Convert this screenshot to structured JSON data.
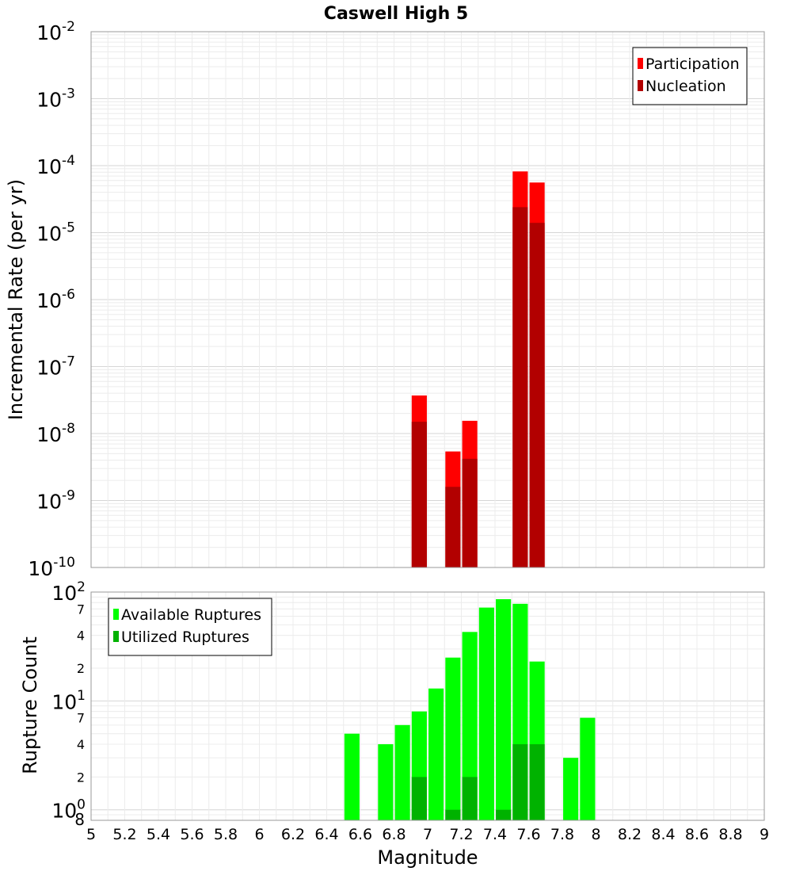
{
  "chart_data": [
    {
      "type": "bar",
      "title": "Caswell High 5",
      "xlabel": "",
      "ylabel": "Incremental Rate (per yr)",
      "yscale": "log",
      "xlim": [
        5,
        9
      ],
      "ylim": [
        1e-10,
        0.01
      ],
      "y_major_ticks": [
        {
          "base": "10",
          "exp": "-10"
        },
        {
          "base": "10",
          "exp": "-9"
        },
        {
          "base": "10",
          "exp": "-8"
        },
        {
          "base": "10",
          "exp": "-7"
        },
        {
          "base": "10",
          "exp": "-6"
        },
        {
          "base": "10",
          "exp": "-5"
        },
        {
          "base": "10",
          "exp": "-4"
        },
        {
          "base": "10",
          "exp": "-3"
        },
        {
          "base": "10",
          "exp": "-2"
        }
      ],
      "legend_position": "top-right",
      "bar_width": 0.09,
      "series": [
        {
          "name": "Participation",
          "color": "#ff0000",
          "points": [
            {
              "x": 6.95,
              "y": 3.7e-08
            },
            {
              "x": 7.15,
              "y": 5.4e-09
            },
            {
              "x": 7.25,
              "y": 1.55e-08
            },
            {
              "x": 7.55,
              "y": 8.2e-05
            },
            {
              "x": 7.65,
              "y": 5.6e-05
            }
          ]
        },
        {
          "name": "Nucleation",
          "color": "#b20000",
          "points": [
            {
              "x": 6.95,
              "y": 1.5e-08
            },
            {
              "x": 7.15,
              "y": 1.6e-09
            },
            {
              "x": 7.25,
              "y": 4.2e-09
            },
            {
              "x": 7.55,
              "y": 2.4e-05
            },
            {
              "x": 7.65,
              "y": 1.4e-05
            }
          ]
        }
      ]
    },
    {
      "type": "bar",
      "title": "",
      "xlabel": "Magnitude",
      "ylabel": "Rupture Count",
      "yscale": "log",
      "xlim": [
        5,
        9
      ],
      "ylim": [
        0.8,
        100
      ],
      "x_ticks": [
        "5",
        "5.2",
        "5.4",
        "5.6",
        "5.8",
        "6",
        "6.2",
        "6.4",
        "6.6",
        "6.8",
        "7",
        "7.2",
        "7.4",
        "7.6",
        "7.8",
        "8",
        "8.2",
        "8.4",
        "8.6",
        "8.8",
        "9"
      ],
      "y_major_ticks": [
        {
          "value": 1,
          "base": "10",
          "exp": "0"
        },
        {
          "value": 10,
          "base": "10",
          "exp": "1"
        },
        {
          "value": 100,
          "base": "10",
          "exp": "2"
        }
      ],
      "y_minor_labels": [
        {
          "value": 0.8,
          "label": "8"
        },
        {
          "value": 2,
          "label": "2"
        },
        {
          "value": 4,
          "label": "4"
        },
        {
          "value": 7,
          "label": "7"
        },
        {
          "value": 20,
          "label": "2"
        },
        {
          "value": 40,
          "label": "4"
        },
        {
          "value": 70,
          "label": "7"
        }
      ],
      "legend_position": "top-left",
      "bar_width": 0.09,
      "series": [
        {
          "name": "Available Ruptures",
          "color": "#00ff00",
          "points": [
            {
              "x": 6.55,
              "y": 5
            },
            {
              "x": 6.75,
              "y": 4
            },
            {
              "x": 6.85,
              "y": 6
            },
            {
              "x": 6.95,
              "y": 8
            },
            {
              "x": 7.05,
              "y": 13
            },
            {
              "x": 7.15,
              "y": 25
            },
            {
              "x": 7.25,
              "y": 43
            },
            {
              "x": 7.35,
              "y": 72
            },
            {
              "x": 7.45,
              "y": 86
            },
            {
              "x": 7.55,
              "y": 78
            },
            {
              "x": 7.65,
              "y": 23
            },
            {
              "x": 7.85,
              "y": 3
            },
            {
              "x": 7.95,
              "y": 7
            }
          ]
        },
        {
          "name": "Utilized Ruptures",
          "color": "#00b200",
          "points": [
            {
              "x": 6.95,
              "y": 2
            },
            {
              "x": 7.15,
              "y": 1
            },
            {
              "x": 7.25,
              "y": 2
            },
            {
              "x": 7.45,
              "y": 1
            },
            {
              "x": 7.55,
              "y": 4
            },
            {
              "x": 7.65,
              "y": 4
            }
          ]
        }
      ]
    }
  ]
}
